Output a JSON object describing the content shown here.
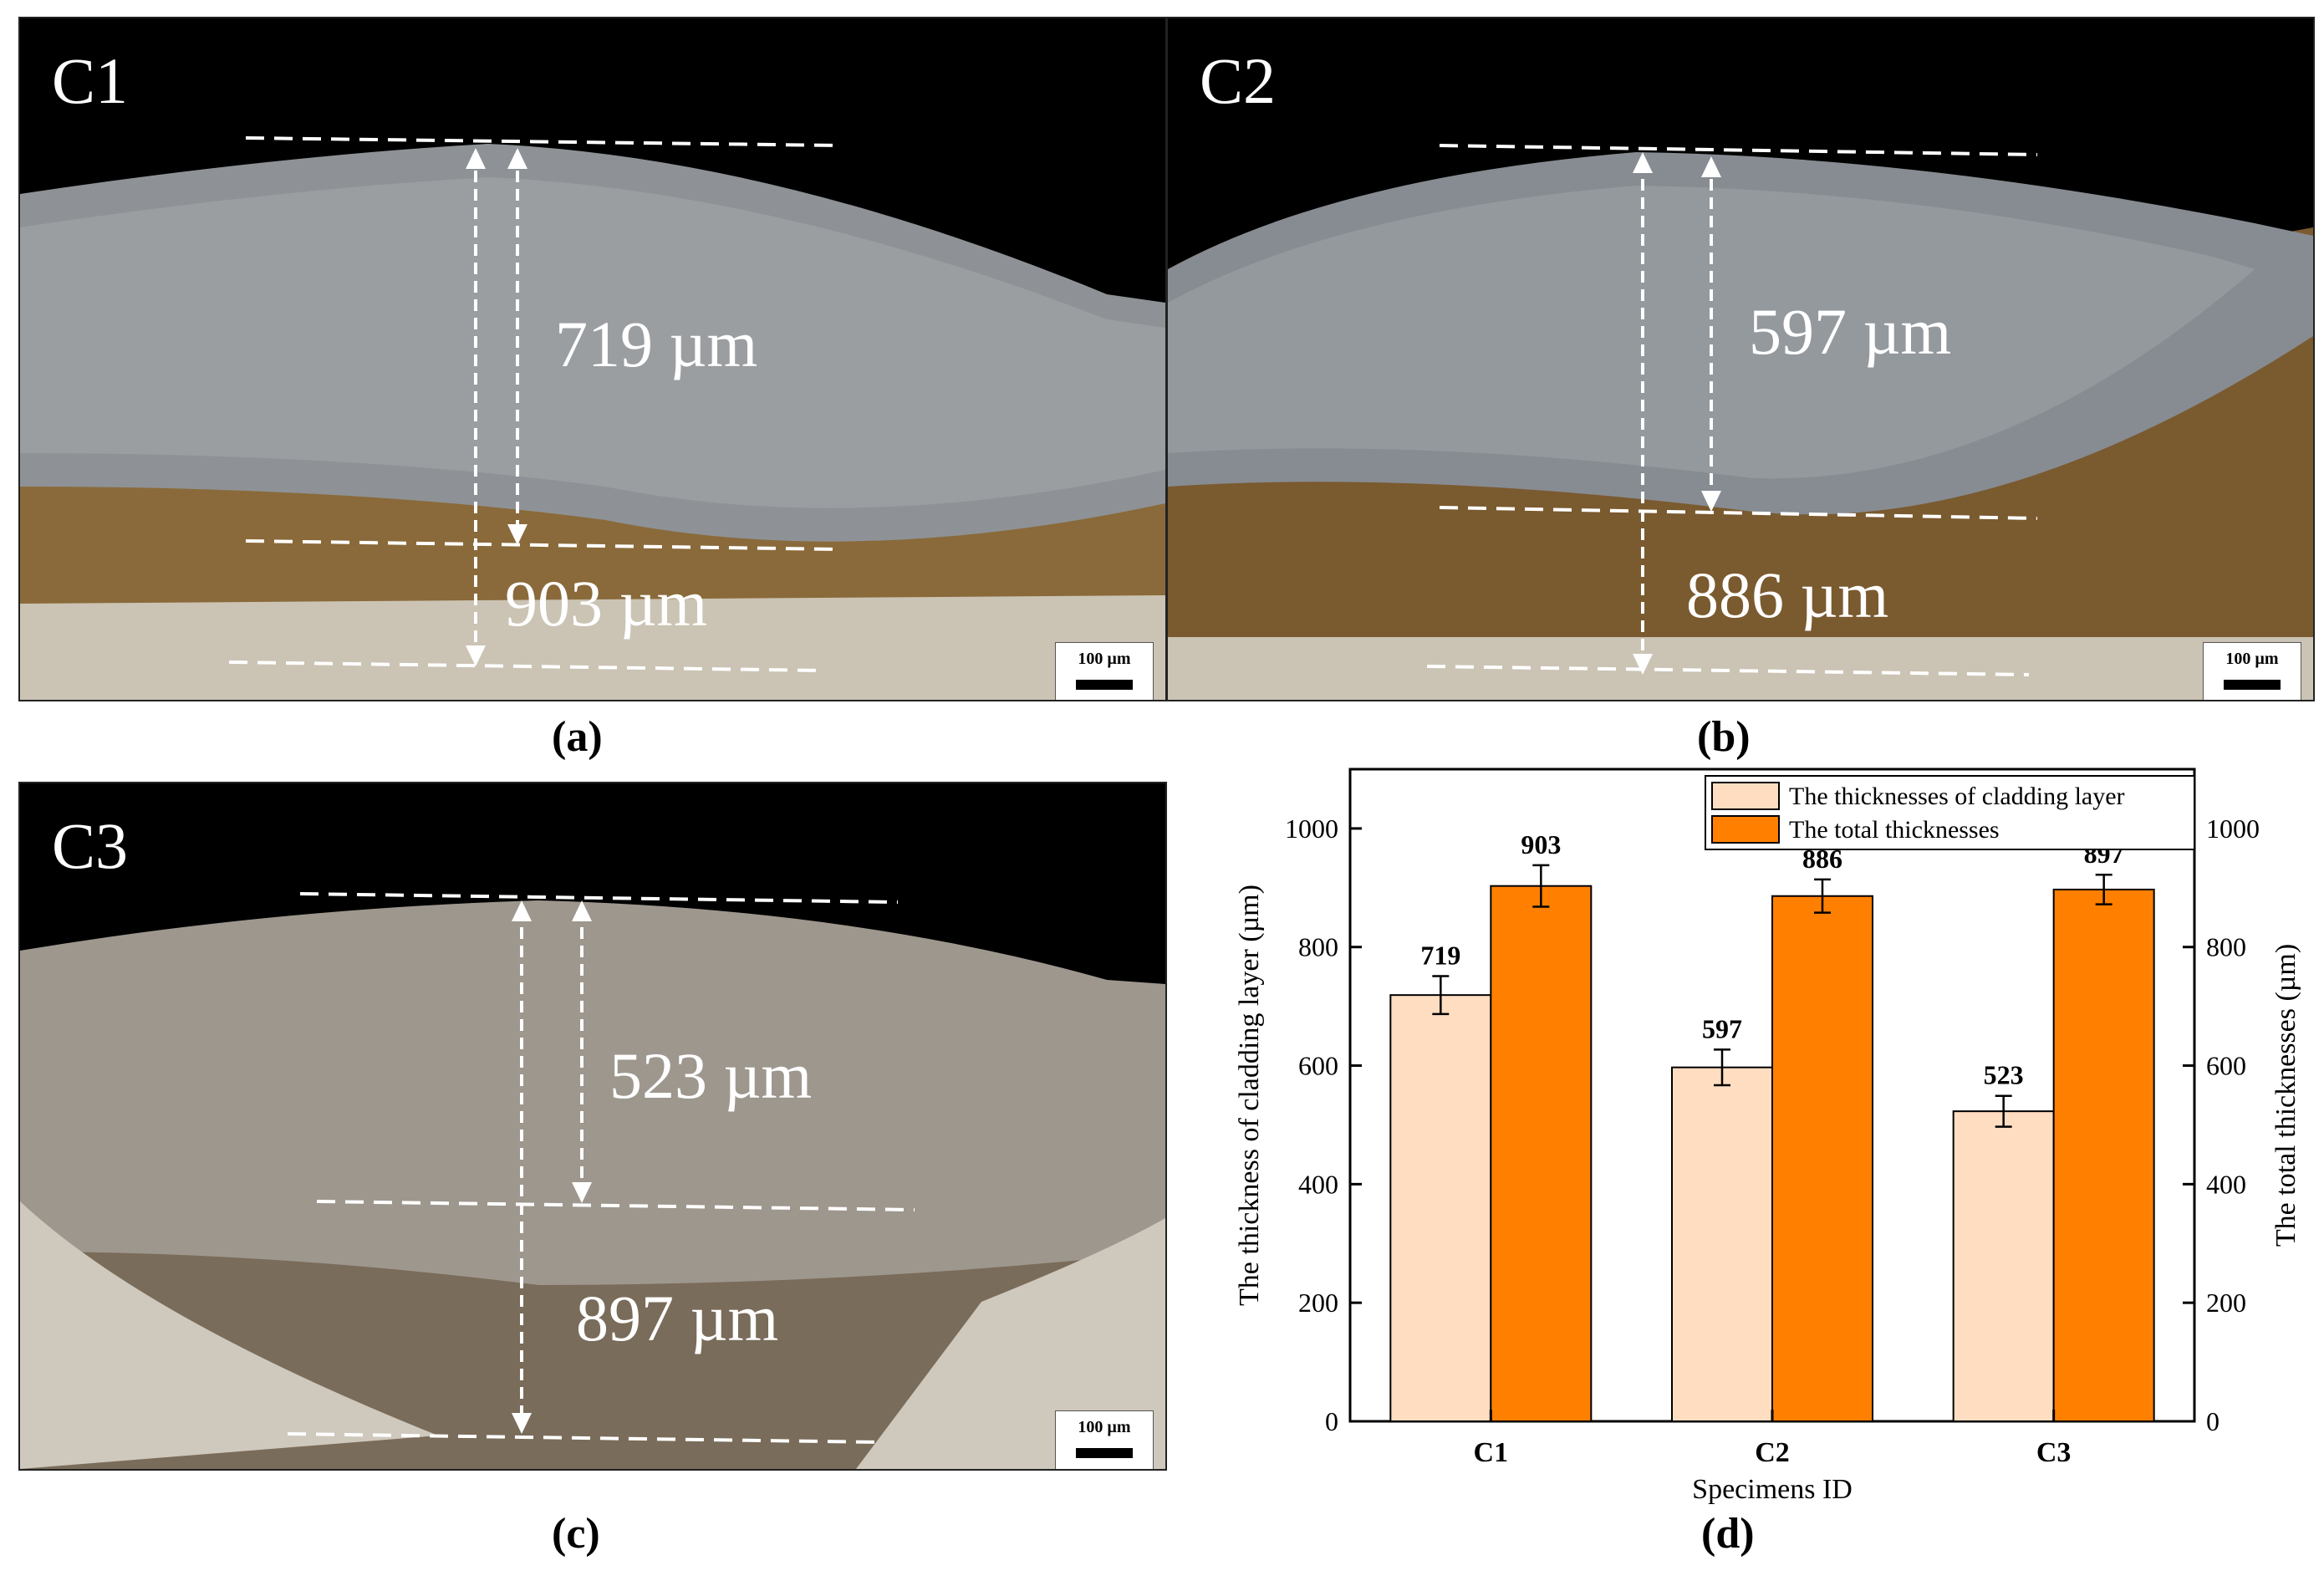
{
  "panels": [
    {
      "id": "C1",
      "caption": "(a)",
      "label_cladding": "719 µm",
      "label_total": "903 µm",
      "scale_label": "100 µm"
    },
    {
      "id": "C2",
      "caption": "(b)",
      "label_cladding": "597 µm",
      "label_total": "886 µm",
      "scale_label": "100 µm"
    },
    {
      "id": "C3",
      "caption": "(c)",
      "label_cladding": "523 µm",
      "label_total": "897 µm",
      "scale_label": "100 µm"
    }
  ],
  "chart_caption": "(d)",
  "colors": {
    "cladding": "#FFDDC1",
    "total": "#FF8000",
    "background": "#000000",
    "substrate_a": "#7A5A2F",
    "substrate_b": "#C9C2B5"
  },
  "chart_data": {
    "type": "bar",
    "categories": [
      "C1",
      "C2",
      "C3"
    ],
    "series": [
      {
        "name": "The thicknesses of cladding layer",
        "values": [
          719,
          597,
          523
        ],
        "errors": [
          32,
          30,
          26
        ],
        "axis": "left"
      },
      {
        "name": "The  total thicknesses",
        "values": [
          903,
          886,
          897
        ],
        "errors": [
          35,
          28,
          25
        ],
        "axis": "right"
      }
    ],
    "xlabel": "Specimens ID",
    "ylabel": "The thickness of cladding layer (µm)",
    "ylabel_right": "The  total thicknesses (µm)",
    "ylim": [
      0,
      1100
    ],
    "ylim_right": [
      0,
      1100
    ],
    "yticks": [
      0,
      200,
      400,
      600,
      800,
      1000
    ],
    "legend_position": "top-right",
    "grid": false
  }
}
